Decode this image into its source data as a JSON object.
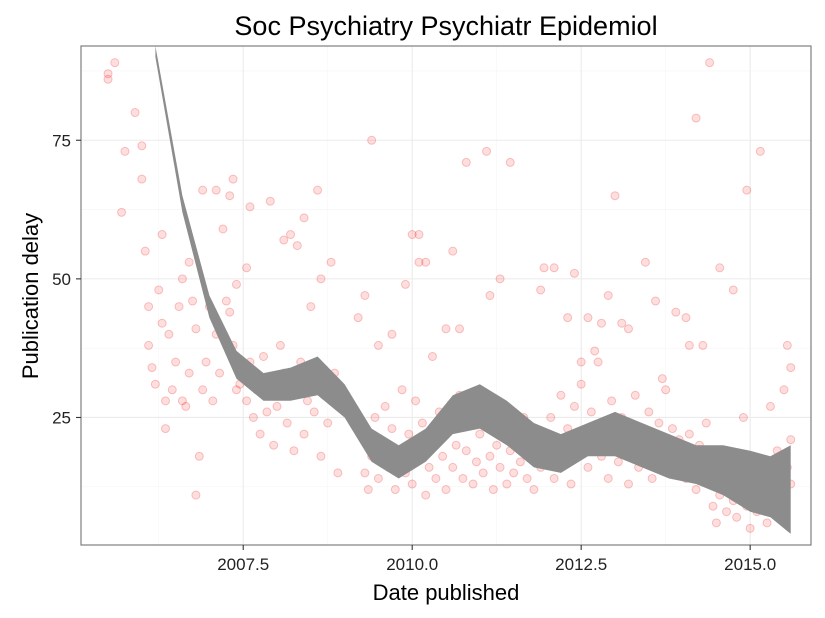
{
  "chart_data": {
    "type": "scatter",
    "title": "Soc Psychiatry Psychiatr Epidemiol",
    "xlabel": "Date published",
    "ylabel": "Publication delay",
    "xlim": [
      2005.1,
      2015.9
    ],
    "ylim": [
      2,
      92
    ],
    "x_ticks": [
      2007.5,
      2010.0,
      2012.5,
      2015.0
    ],
    "x_tick_labels": [
      "2007.5",
      "2010.0",
      "2012.5",
      "2015.0"
    ],
    "y_ticks": [
      25,
      50,
      75
    ],
    "y_tick_labels": [
      "25",
      "50",
      "75"
    ],
    "grid": true,
    "point_color": "#ff0000",
    "band_color": "#8c8c8c",
    "series": [
      {
        "type": "scatter",
        "points": [
          [
            2005.5,
            87
          ],
          [
            2005.5,
            86
          ],
          [
            2005.6,
            89
          ],
          [
            2005.7,
            62
          ],
          [
            2005.75,
            73
          ],
          [
            2005.9,
            80
          ],
          [
            2006.0,
            74
          ],
          [
            2006.0,
            68
          ],
          [
            2006.05,
            55
          ],
          [
            2006.1,
            45
          ],
          [
            2006.1,
            38
          ],
          [
            2006.15,
            34
          ],
          [
            2006.2,
            31
          ],
          [
            2006.25,
            48
          ],
          [
            2006.3,
            58
          ],
          [
            2006.3,
            42
          ],
          [
            2006.35,
            28
          ],
          [
            2006.35,
            23
          ],
          [
            2006.4,
            40
          ],
          [
            2006.45,
            30
          ],
          [
            2006.5,
            35
          ],
          [
            2006.55,
            45
          ],
          [
            2006.6,
            50
          ],
          [
            2006.6,
            28
          ],
          [
            2006.65,
            27
          ],
          [
            2006.7,
            33
          ],
          [
            2006.75,
            46
          ],
          [
            2006.8,
            41
          ],
          [
            2006.85,
            18
          ],
          [
            2006.9,
            30
          ],
          [
            2006.95,
            35
          ],
          [
            2007.0,
            45
          ],
          [
            2007.05,
            28
          ],
          [
            2007.1,
            40
          ],
          [
            2007.15,
            33
          ],
          [
            2007.2,
            59
          ],
          [
            2007.25,
            46
          ],
          [
            2007.3,
            44
          ],
          [
            2007.35,
            38
          ],
          [
            2007.4,
            30
          ],
          [
            2007.45,
            31
          ],
          [
            2007.5,
            34
          ],
          [
            2007.55,
            28
          ],
          [
            2007.6,
            35
          ],
          [
            2007.65,
            25
          ],
          [
            2007.7,
            30
          ],
          [
            2007.75,
            22
          ],
          [
            2007.8,
            36
          ],
          [
            2007.85,
            26
          ],
          [
            2007.9,
            32
          ],
          [
            2007.95,
            20
          ],
          [
            2008.0,
            27
          ],
          [
            2008.05,
            38
          ],
          [
            2008.1,
            33
          ],
          [
            2008.15,
            24
          ],
          [
            2008.2,
            29
          ],
          [
            2008.25,
            19
          ],
          [
            2008.3,
            31
          ],
          [
            2008.35,
            35
          ],
          [
            2008.4,
            22
          ],
          [
            2008.45,
            28
          ],
          [
            2008.5,
            45
          ],
          [
            2008.55,
            26
          ],
          [
            2008.6,
            32
          ],
          [
            2008.65,
            18
          ],
          [
            2008.7,
            29
          ],
          [
            2008.75,
            24
          ],
          [
            2008.8,
            53
          ],
          [
            2008.85,
            33
          ],
          [
            2008.9,
            15
          ],
          [
            2006.9,
            66
          ],
          [
            2007.1,
            66
          ],
          [
            2007.3,
            65
          ],
          [
            2007.35,
            68
          ],
          [
            2007.6,
            63
          ],
          [
            2007.9,
            64
          ],
          [
            2008.2,
            58
          ],
          [
            2008.3,
            56
          ],
          [
            2008.4,
            61
          ],
          [
            2008.6,
            66
          ],
          [
            2008.65,
            50
          ],
          [
            2006.7,
            53
          ],
          [
            2006.8,
            11
          ],
          [
            2008.1,
            57
          ],
          [
            2007.4,
            49
          ],
          [
            2007.55,
            52
          ],
          [
            2009.2,
            43
          ],
          [
            2009.25,
            22
          ],
          [
            2009.3,
            15
          ],
          [
            2009.35,
            12
          ],
          [
            2009.4,
            18
          ],
          [
            2009.45,
            25
          ],
          [
            2009.5,
            14
          ],
          [
            2009.55,
            20
          ],
          [
            2009.6,
            27
          ],
          [
            2009.65,
            16
          ],
          [
            2009.7,
            23
          ],
          [
            2009.75,
            12
          ],
          [
            2009.8,
            19
          ],
          [
            2009.85,
            30
          ],
          [
            2009.9,
            15
          ],
          [
            2009.95,
            22
          ],
          [
            2010.0,
            13
          ],
          [
            2010.05,
            28
          ],
          [
            2010.1,
            18
          ],
          [
            2010.15,
            24
          ],
          [
            2010.2,
            11
          ],
          [
            2010.25,
            16
          ],
          [
            2010.3,
            21
          ],
          [
            2010.35,
            14
          ],
          [
            2010.4,
            26
          ],
          [
            2010.45,
            18
          ],
          [
            2010.5,
            12
          ],
          [
            2010.55,
            23
          ],
          [
            2010.6,
            16
          ],
          [
            2010.65,
            20
          ],
          [
            2010.7,
            29
          ],
          [
            2010.75,
            14
          ],
          [
            2010.8,
            19
          ],
          [
            2010.85,
            24
          ],
          [
            2010.9,
            13
          ],
          [
            2010.95,
            17
          ],
          [
            2011.0,
            22
          ],
          [
            2011.05,
            15
          ],
          [
            2011.1,
            26
          ],
          [
            2011.15,
            18
          ],
          [
            2011.2,
            12
          ],
          [
            2011.25,
            20
          ],
          [
            2011.3,
            16
          ],
          [
            2011.35,
            23
          ],
          [
            2011.4,
            13
          ],
          [
            2011.45,
            19
          ],
          [
            2011.5,
            15
          ],
          [
            2011.55,
            21
          ],
          [
            2011.6,
            17
          ],
          [
            2011.65,
            25
          ],
          [
            2011.7,
            14
          ],
          [
            2011.75,
            19
          ],
          [
            2011.8,
            12
          ],
          [
            2011.85,
            22
          ],
          [
            2011.9,
            16
          ],
          [
            2011.95,
            20
          ],
          [
            2009.4,
            75
          ],
          [
            2009.3,
            47
          ],
          [
            2009.7,
            40
          ],
          [
            2009.9,
            49
          ],
          [
            2010.0,
            58
          ],
          [
            2010.1,
            58
          ],
          [
            2010.1,
            53
          ],
          [
            2010.2,
            53
          ],
          [
            2010.5,
            41
          ],
          [
            2010.6,
            55
          ],
          [
            2010.7,
            41
          ],
          [
            2010.8,
            71
          ],
          [
            2011.1,
            73
          ],
          [
            2011.15,
            47
          ],
          [
            2011.3,
            50
          ],
          [
            2011.45,
            71
          ],
          [
            2011.9,
            48
          ],
          [
            2011.95,
            52
          ],
          [
            2010.3,
            36
          ],
          [
            2009.5,
            38
          ],
          [
            2012.0,
            18
          ],
          [
            2012.05,
            25
          ],
          [
            2012.1,
            14
          ],
          [
            2012.15,
            21
          ],
          [
            2012.2,
            29
          ],
          [
            2012.25,
            17
          ],
          [
            2012.3,
            23
          ],
          [
            2012.35,
            13
          ],
          [
            2012.4,
            27
          ],
          [
            2012.45,
            19
          ],
          [
            2012.5,
            31
          ],
          [
            2012.55,
            22
          ],
          [
            2012.6,
            16
          ],
          [
            2012.65,
            26
          ],
          [
            2012.7,
            20
          ],
          [
            2012.75,
            35
          ],
          [
            2012.8,
            18
          ],
          [
            2012.85,
            24
          ],
          [
            2012.9,
            14
          ],
          [
            2012.95,
            28
          ],
          [
            2013.0,
            21
          ],
          [
            2013.05,
            17
          ],
          [
            2013.1,
            25
          ],
          [
            2013.15,
            19
          ],
          [
            2013.2,
            13
          ],
          [
            2013.25,
            23
          ],
          [
            2013.3,
            29
          ],
          [
            2013.35,
            16
          ],
          [
            2013.4,
            22
          ],
          [
            2013.45,
            18
          ],
          [
            2013.5,
            26
          ],
          [
            2013.55,
            14
          ],
          [
            2013.6,
            20
          ],
          [
            2013.65,
            24
          ],
          [
            2013.7,
            17
          ],
          [
            2013.75,
            30
          ],
          [
            2013.8,
            19
          ],
          [
            2013.85,
            23
          ],
          [
            2013.9,
            15
          ],
          [
            2013.95,
            21
          ],
          [
            2012.1,
            52
          ],
          [
            2012.3,
            43
          ],
          [
            2012.4,
            51
          ],
          [
            2012.6,
            43
          ],
          [
            2012.8,
            42
          ],
          [
            2012.9,
            47
          ],
          [
            2013.0,
            65
          ],
          [
            2013.1,
            42
          ],
          [
            2013.2,
            41
          ],
          [
            2013.45,
            53
          ],
          [
            2013.6,
            46
          ],
          [
            2013.9,
            44
          ],
          [
            2012.7,
            37
          ],
          [
            2013.7,
            32
          ],
          [
            2012.5,
            35
          ],
          [
            2014.0,
            18
          ],
          [
            2014.05,
            14
          ],
          [
            2014.1,
            22
          ],
          [
            2014.15,
            16
          ],
          [
            2014.2,
            12
          ],
          [
            2014.25,
            20
          ],
          [
            2014.3,
            15
          ],
          [
            2014.35,
            24
          ],
          [
            2014.4,
            13
          ],
          [
            2014.45,
            9
          ],
          [
            2014.5,
            6
          ],
          [
            2014.55,
            11
          ],
          [
            2014.6,
            18
          ],
          [
            2014.65,
            8
          ],
          [
            2014.7,
            14
          ],
          [
            2014.75,
            10
          ],
          [
            2014.8,
            7
          ],
          [
            2014.85,
            16
          ],
          [
            2014.9,
            12
          ],
          [
            2014.95,
            9
          ],
          [
            2015.0,
            5
          ],
          [
            2015.05,
            13
          ],
          [
            2015.1,
            8
          ],
          [
            2015.15,
            17
          ],
          [
            2015.2,
            11
          ],
          [
            2015.25,
            6
          ],
          [
            2015.3,
            14
          ],
          [
            2015.35,
            9
          ],
          [
            2015.4,
            19
          ],
          [
            2015.45,
            12
          ],
          [
            2015.5,
            10
          ],
          [
            2015.55,
            16
          ],
          [
            2015.6,
            13
          ],
          [
            2014.05,
            43
          ],
          [
            2014.2,
            79
          ],
          [
            2014.4,
            89
          ],
          [
            2014.55,
            52
          ],
          [
            2014.75,
            48
          ],
          [
            2014.95,
            66
          ],
          [
            2015.15,
            73
          ],
          [
            2014.9,
            25
          ],
          [
            2014.3,
            38
          ],
          [
            2015.55,
            38
          ],
          [
            2015.6,
            34
          ],
          [
            2015.5,
            30
          ],
          [
            2015.3,
            27
          ],
          [
            2014.1,
            38
          ],
          [
            2015.6,
            21
          ]
        ]
      },
      {
        "type": "line",
        "name": "",
        "x": [
          2006.2,
          2006.6,
          2007.0,
          2007.4,
          2007.8,
          2008.2,
          2008.6,
          2009.0,
          2009.4,
          2009.8,
          2010.2,
          2010.6,
          2011.0,
          2011.4,
          2011.8,
          2012.2,
          2012.6,
          2013.0,
          2013.4,
          2013.8,
          2014.2,
          2014.6,
          2015.0,
          2015.3,
          2015.6
        ],
        "y": [
          91,
          63,
          45,
          35,
          30,
          31,
          32,
          28,
          20,
          17,
          20,
          25,
          27,
          24,
          20,
          19,
          21,
          22,
          20,
          18,
          17,
          16,
          14,
          13,
          12
        ],
        "lower": [
          90,
          62,
          43,
          32,
          28,
          28,
          29,
          25,
          17,
          14,
          17,
          22,
          23,
          20,
          16,
          15,
          18,
          18,
          16,
          14,
          13,
          11,
          8,
          7,
          4
        ],
        "upper": [
          92,
          65,
          47,
          37,
          33,
          34,
          36,
          31,
          23,
          20,
          23,
          29,
          31,
          28,
          24,
          22,
          24,
          26,
          24,
          22,
          20,
          20,
          19,
          18,
          20
        ]
      }
    ]
  }
}
